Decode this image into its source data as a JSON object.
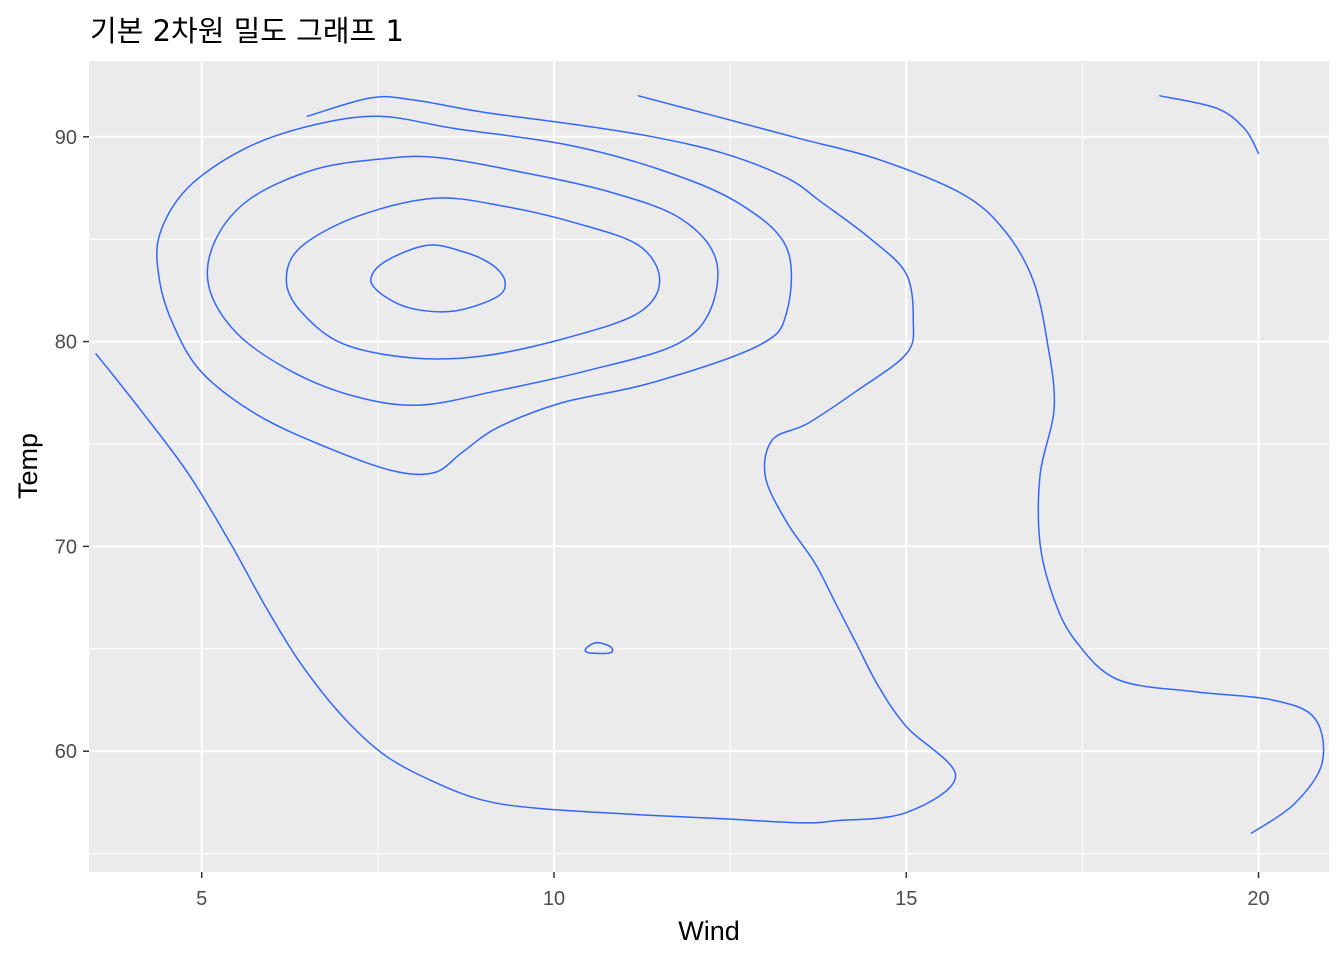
{
  "chart_data": {
    "type": "contour",
    "title": "기본 2차원 밀도 그래프 1",
    "xlabel": "Wind",
    "ylabel": "Temp",
    "xlim": [
      3.4,
      21.0
    ],
    "ylim": [
      54.1,
      93.7
    ],
    "x_ticks": [
      5,
      10,
      15,
      20
    ],
    "y_ticks": [
      60,
      70,
      80,
      90
    ],
    "x_minor": [
      7.5,
      12.5,
      17.5
    ],
    "y_minor": [
      55,
      65,
      75,
      85
    ],
    "grid": true,
    "line_color": "#3366ff",
    "contours": [
      {
        "points": [
          [
            10.6,
            65.3
          ],
          [
            10.8,
            65.1
          ],
          [
            10.8,
            64.8
          ],
          [
            10.5,
            64.8
          ],
          [
            10.45,
            65.0
          ],
          [
            10.6,
            65.3
          ]
        ]
      },
      {
        "points": [
          [
            8.2,
            84.7
          ],
          [
            8.7,
            84.4
          ],
          [
            9.1,
            83.8
          ],
          [
            9.3,
            83.0
          ],
          [
            9.2,
            82.2
          ],
          [
            8.6,
            81.5
          ],
          [
            8.0,
            81.6
          ],
          [
            7.6,
            82.2
          ],
          [
            7.4,
            83.0
          ],
          [
            7.6,
            83.9
          ],
          [
            8.2,
            84.7
          ]
        ]
      },
      {
        "points": [
          [
            8.3,
            87.0
          ],
          [
            9.3,
            86.6
          ],
          [
            10.3,
            85.8
          ],
          [
            11.2,
            84.7
          ],
          [
            11.5,
            83.0
          ],
          [
            11.2,
            81.4
          ],
          [
            10.2,
            80.2
          ],
          [
            9.0,
            79.3
          ],
          [
            8.0,
            79.2
          ],
          [
            7.0,
            79.9
          ],
          [
            6.4,
            81.5
          ],
          [
            6.2,
            83.0
          ],
          [
            6.4,
            84.6
          ],
          [
            7.2,
            86.1
          ],
          [
            8.3,
            87.0
          ]
        ]
      },
      {
        "points": [
          [
            8.3,
            89.0
          ],
          [
            9.5,
            88.3
          ],
          [
            10.8,
            87.3
          ],
          [
            11.8,
            86.0
          ],
          [
            12.3,
            84.0
          ],
          [
            12.2,
            81.4
          ],
          [
            11.7,
            79.8
          ],
          [
            10.5,
            78.6
          ],
          [
            9.2,
            77.6
          ],
          [
            8.1,
            76.9
          ],
          [
            7.2,
            77.3
          ],
          [
            6.3,
            78.5
          ],
          [
            5.5,
            80.4
          ],
          [
            5.1,
            82.7
          ],
          [
            5.2,
            85.0
          ],
          [
            5.7,
            87.0
          ],
          [
            6.6,
            88.4
          ],
          [
            7.5,
            88.9
          ],
          [
            8.3,
            89.0
          ]
        ]
      },
      {
        "points": [
          [
            7.5,
            91.0
          ],
          [
            8.6,
            90.4
          ],
          [
            10.2,
            89.6
          ],
          [
            11.5,
            88.4
          ],
          [
            12.6,
            86.8
          ],
          [
            13.3,
            84.6
          ],
          [
            13.3,
            81.4
          ],
          [
            12.9,
            79.8
          ],
          [
            11.4,
            78.0
          ],
          [
            10.1,
            77.0
          ],
          [
            9.2,
            75.8
          ],
          [
            8.7,
            74.6
          ],
          [
            8.3,
            73.6
          ],
          [
            7.7,
            73.7
          ],
          [
            6.8,
            74.8
          ],
          [
            5.8,
            76.4
          ],
          [
            5.0,
            78.5
          ],
          [
            4.6,
            80.8
          ],
          [
            4.4,
            83.0
          ],
          [
            4.4,
            85.2
          ],
          [
            4.8,
            87.5
          ],
          [
            5.6,
            89.4
          ],
          [
            6.5,
            90.5
          ],
          [
            7.5,
            91.0
          ]
        ]
      },
      {
        "points": [
          [
            6.5,
            91.0
          ],
          [
            7.4,
            91.9
          ],
          [
            8.0,
            91.8
          ],
          [
            9.0,
            91.2
          ],
          [
            10.3,
            90.6
          ],
          [
            11.4,
            90.0
          ],
          [
            12.4,
            89.2
          ],
          [
            13.3,
            88.0
          ],
          [
            13.8,
            86.8
          ],
          [
            14.5,
            85.0
          ],
          [
            15.0,
            83.3
          ],
          [
            15.1,
            81.0
          ],
          [
            15.0,
            79.4
          ],
          [
            14.3,
            77.6
          ],
          [
            13.6,
            76.0
          ],
          [
            13.1,
            75.2
          ],
          [
            13.0,
            73.4
          ],
          [
            13.3,
            71.2
          ],
          [
            13.7,
            69.2
          ],
          [
            14.0,
            67.2
          ],
          [
            14.3,
            65.2
          ],
          [
            14.6,
            63.2
          ],
          [
            15.0,
            61.2
          ],
          [
            15.7,
            58.8
          ],
          [
            15.0,
            57.0
          ],
          [
            14.0,
            56.6
          ],
          [
            13.5,
            56.5
          ],
          [
            12.4,
            56.7
          ],
          [
            11.2,
            56.9
          ],
          [
            9.8,
            57.2
          ],
          [
            9.0,
            57.6
          ],
          [
            8.3,
            58.5
          ],
          [
            7.6,
            59.8
          ],
          [
            7.0,
            61.7
          ],
          [
            6.4,
            64.3
          ],
          [
            5.9,
            67.1
          ],
          [
            5.4,
            70.2
          ],
          [
            4.8,
            73.6
          ],
          [
            4.1,
            76.8
          ],
          [
            3.5,
            79.4
          ]
        ]
      },
      {
        "points": [
          [
            11.2,
            92.0
          ],
          [
            12.3,
            91.0
          ],
          [
            13.5,
            89.9
          ],
          [
            14.6,
            88.9
          ],
          [
            15.8,
            87.2
          ],
          [
            16.4,
            85.4
          ],
          [
            16.8,
            83.0
          ],
          [
            17.0,
            80.0
          ],
          [
            17.1,
            76.8
          ],
          [
            16.9,
            73.5
          ],
          [
            16.9,
            70.1
          ],
          [
            17.1,
            67.4
          ],
          [
            17.4,
            65.4
          ],
          [
            18.0,
            63.5
          ],
          [
            19.1,
            62.9
          ],
          [
            20.2,
            62.5
          ],
          [
            20.8,
            61.6
          ],
          [
            20.9,
            59.4
          ],
          [
            20.5,
            57.4
          ],
          [
            19.9,
            56.0
          ]
        ]
      },
      {
        "points": [
          [
            18.6,
            92.0
          ],
          [
            19.4,
            91.4
          ],
          [
            19.8,
            90.4
          ],
          [
            20.0,
            89.2
          ]
        ]
      }
    ]
  }
}
